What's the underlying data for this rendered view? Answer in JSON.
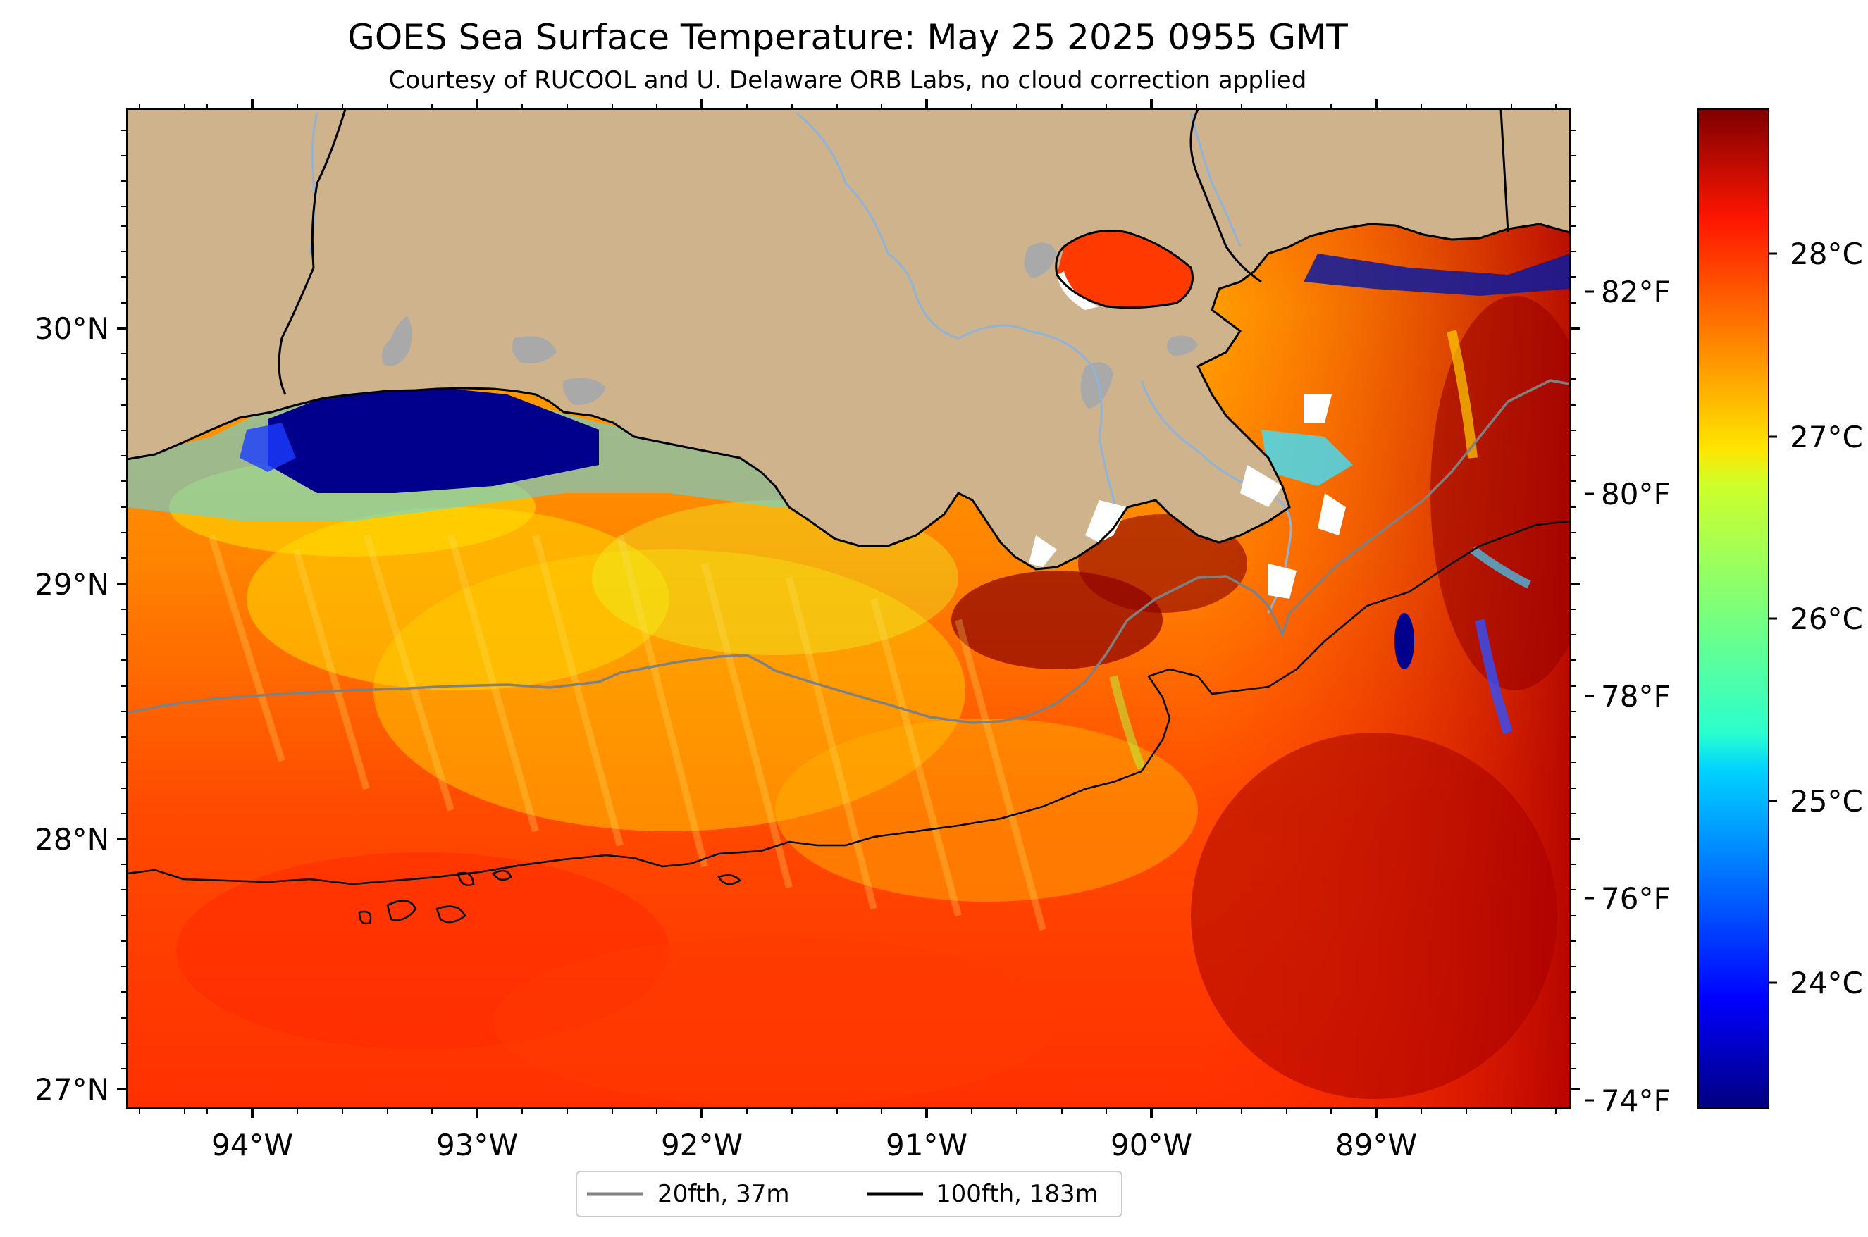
{
  "title": "GOES Sea Surface Temperature: May 25 2025 0955 GMT",
  "subtitle": "Courtesy of RUCOOL and U. Delaware ORB Labs, no cloud correction applied",
  "map": {
    "lon_range": [
      -94.55,
      -88.2
    ],
    "lat_range": [
      26.93,
      30.88
    ],
    "land_color": "#cfb38c",
    "lake_color": "#a9a9a9",
    "river_color": "#8fb3d9",
    "coast_color": "#000000"
  },
  "axes": {
    "lon_ticks": [
      "94°W",
      "93°W",
      "92°W",
      "91°W",
      "90°W",
      "89°W"
    ],
    "lat_ticks": [
      "30°N",
      "29°N",
      "28°N",
      "27°N"
    ]
  },
  "colorbar": {
    "celsius_labels": [
      "28°C",
      "27°C",
      "26°C",
      "25°C",
      "24°C"
    ],
    "fahrenheit_labels": [
      "82°F",
      "80°F",
      "78°F",
      "76°F",
      "74°F"
    ],
    "colormap": "jet",
    "range_c": [
      23.2,
      28.9
    ]
  },
  "legend": {
    "items": [
      {
        "label": "20fth, 37m",
        "color": "#808080"
      },
      {
        "label": "100fth, 183m",
        "color": "#000000"
      }
    ]
  }
}
